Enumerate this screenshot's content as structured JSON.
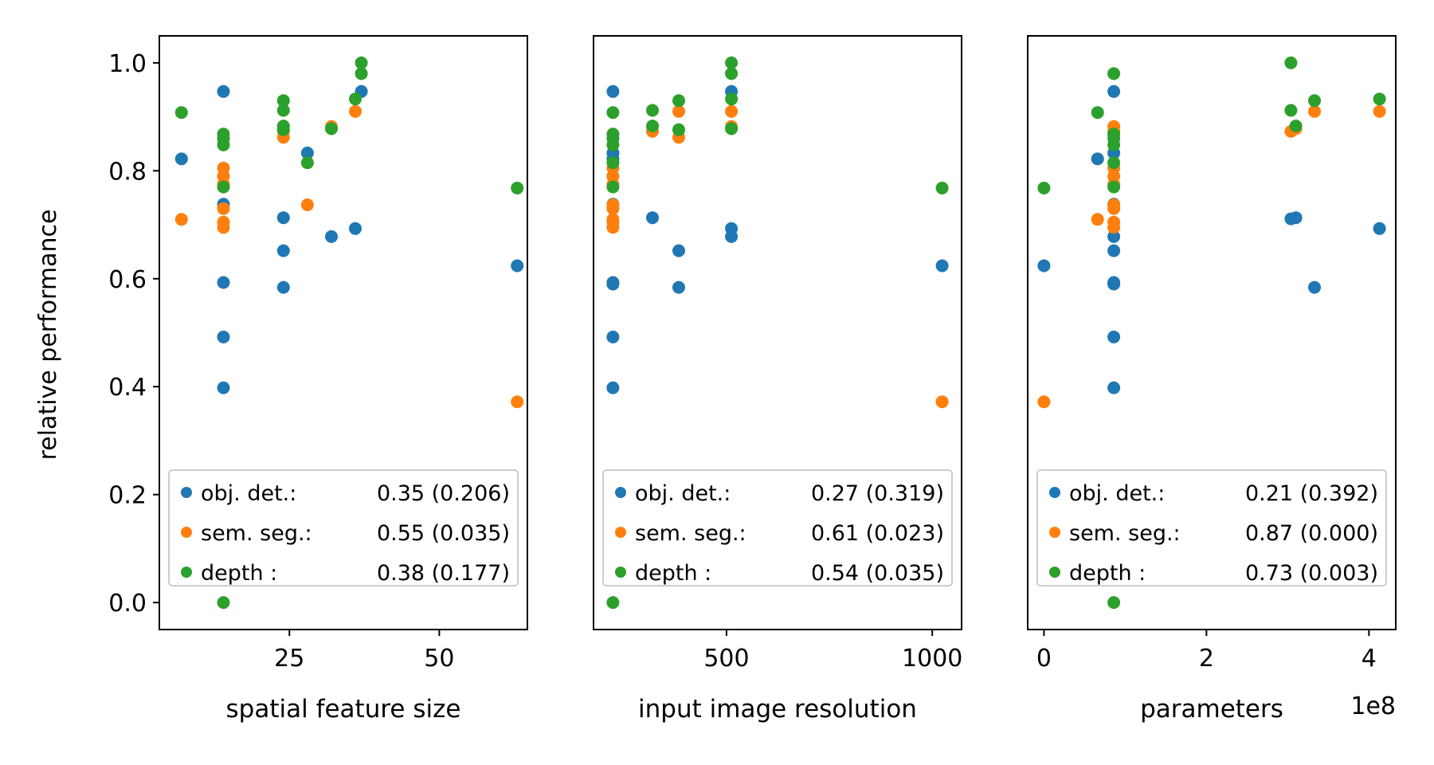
{
  "figure": {
    "ylabel": "relative performance"
  },
  "colors": {
    "obj_det": "#1f77b4",
    "sem_seg": "#ff7f0e",
    "depth": "#2ca02c"
  },
  "chart_data": [
    {
      "type": "scatter",
      "title": "",
      "xlabel": "spatial feature size",
      "ylabel": "relative performance",
      "xlim": [
        3.3,
        64.7
      ],
      "ylim": [
        -0.05,
        1.05
      ],
      "xticks": [
        25,
        50
      ],
      "xtick_labels": [
        "25",
        "50"
      ],
      "yticks": [
        0.0,
        0.2,
        0.4,
        0.6,
        0.8,
        1.0
      ],
      "ytick_labels": [
        "0.0",
        "0.2",
        "0.4",
        "0.6",
        "0.8",
        "1.0"
      ],
      "offset_text": "",
      "legend_placement": "lower-right",
      "series": [
        {
          "key": "obj_det",
          "name": "obj. det.:",
          "stat": "0.35 (0.206)",
          "points": [
            [
              7,
              0.822
            ],
            [
              14,
              0.947
            ],
            [
              14,
              0.738
            ],
            [
              14,
              0.593
            ],
            [
              14,
              0.492
            ],
            [
              14,
              0.398
            ],
            [
              24,
              0.713
            ],
            [
              24,
              0.652
            ],
            [
              24,
              0.584
            ],
            [
              28,
              0.833
            ],
            [
              32,
              0.678
            ],
            [
              36,
              0.693
            ],
            [
              37,
              0.947
            ],
            [
              63,
              0.624
            ]
          ]
        },
        {
          "key": "sem_seg",
          "name": "sem. seg.:",
          "stat": "0.55 (0.035)",
          "points": [
            [
              7,
              0.71
            ],
            [
              14,
              0.805
            ],
            [
              14,
              0.79
            ],
            [
              14,
              0.775
            ],
            [
              14,
              0.73
            ],
            [
              14,
              0.705
            ],
            [
              14,
              0.695
            ],
            [
              24,
              0.873
            ],
            [
              24,
              0.862
            ],
            [
              28,
              0.737
            ],
            [
              32,
              0.882
            ],
            [
              36,
              0.91
            ],
            [
              63,
              0.372
            ]
          ]
        },
        {
          "key": "depth",
          "name": "depth :",
          "stat": "0.38 (0.177)",
          "points": [
            [
              7,
              0.908
            ],
            [
              14,
              0.868
            ],
            [
              14,
              0.86
            ],
            [
              14,
              0.848
            ],
            [
              14,
              0.77
            ],
            [
              14,
              0.0
            ],
            [
              24,
              0.93
            ],
            [
              24,
              0.912
            ],
            [
              24,
              0.883
            ],
            [
              24,
              0.876
            ],
            [
              28,
              0.815
            ],
            [
              32,
              0.878
            ],
            [
              36,
              0.933
            ],
            [
              37,
              1.0
            ],
            [
              37,
              0.98
            ],
            [
              63,
              0.768
            ]
          ]
        }
      ]
    },
    {
      "type": "scatter",
      "title": "",
      "xlabel": "input image resolution",
      "ylabel": "",
      "xlim": [
        176.8,
        1071.2
      ],
      "ylim": [
        -0.05,
        1.05
      ],
      "xticks": [
        500,
        1000
      ],
      "xtick_labels": [
        "500",
        "1000"
      ],
      "yticks": [],
      "ytick_labels": [],
      "offset_text": "",
      "legend_placement": "lower-right",
      "series": [
        {
          "key": "obj_det",
          "name": "obj. det.:",
          "stat": "0.27 (0.319)",
          "points": [
            [
              224,
              0.947
            ],
            [
              224,
              0.833
            ],
            [
              224,
              0.822
            ],
            [
              224,
              0.738
            ],
            [
              224,
              0.593
            ],
            [
              224,
              0.59
            ],
            [
              224,
              0.492
            ],
            [
              224,
              0.398
            ],
            [
              320,
              0.713
            ],
            [
              384,
              0.652
            ],
            [
              384,
              0.584
            ],
            [
              512,
              0.947
            ],
            [
              512,
              0.693
            ],
            [
              512,
              0.678
            ],
            [
              1024,
              0.624
            ]
          ]
        },
        {
          "key": "sem_seg",
          "name": "sem. seg.:",
          "stat": "0.61 (0.023)",
          "points": [
            [
              224,
              0.805
            ],
            [
              224,
              0.79
            ],
            [
              224,
              0.775
            ],
            [
              224,
              0.737
            ],
            [
              224,
              0.73
            ],
            [
              224,
              0.71
            ],
            [
              224,
              0.705
            ],
            [
              224,
              0.695
            ],
            [
              320,
              0.873
            ],
            [
              384,
              0.91
            ],
            [
              384,
              0.862
            ],
            [
              512,
              0.91
            ],
            [
              512,
              0.882
            ],
            [
              1024,
              0.372
            ]
          ]
        },
        {
          "key": "depth",
          "name": "depth :",
          "stat": "0.54 (0.035)",
          "points": [
            [
              224,
              0.908
            ],
            [
              224,
              0.868
            ],
            [
              224,
              0.86
            ],
            [
              224,
              0.848
            ],
            [
              224,
              0.815
            ],
            [
              224,
              0.77
            ],
            [
              224,
              0.0
            ],
            [
              320,
              0.912
            ],
            [
              320,
              0.883
            ],
            [
              384,
              0.93
            ],
            [
              384,
              0.876
            ],
            [
              512,
              1.0
            ],
            [
              512,
              0.98
            ],
            [
              512,
              0.933
            ],
            [
              512,
              0.878
            ],
            [
              1024,
              0.768
            ]
          ]
        }
      ]
    },
    {
      "type": "scatter",
      "title": "",
      "xlabel": "parameters",
      "ylabel": "",
      "xlim": [
        -20000000,
        433000000
      ],
      "ylim": [
        -0.05,
        1.05
      ],
      "xticks": [
        0,
        200000000,
        400000000
      ],
      "xtick_labels": [
        "0",
        "2",
        "4"
      ],
      "yticks": [],
      "ytick_labels": [],
      "offset_text": "1e8",
      "legend_placement": "lower-right",
      "series": [
        {
          "key": "obj_det",
          "name": "obj. det.:",
          "stat": "0.21 (0.392)",
          "points": [
            [
              0,
              0.624
            ],
            [
              66000000,
              0.822
            ],
            [
              86000000,
              0.947
            ],
            [
              86000000,
              0.833
            ],
            [
              86000000,
              0.738
            ],
            [
              86000000,
              0.678
            ],
            [
              86000000,
              0.652
            ],
            [
              86000000,
              0.593
            ],
            [
              86000000,
              0.59
            ],
            [
              86000000,
              0.492
            ],
            [
              86000000,
              0.398
            ],
            [
              304000000,
              0.711
            ],
            [
              310000000,
              0.713
            ],
            [
              333000000,
              0.584
            ],
            [
              413000000,
              0.693
            ]
          ]
        },
        {
          "key": "sem_seg",
          "name": "sem. seg.:",
          "stat": "0.87 (0.000)",
          "points": [
            [
              0,
              0.372
            ],
            [
              66000000,
              0.71
            ],
            [
              86000000,
              0.882
            ],
            [
              86000000,
              0.873
            ],
            [
              86000000,
              0.805
            ],
            [
              86000000,
              0.79
            ],
            [
              86000000,
              0.775
            ],
            [
              86000000,
              0.737
            ],
            [
              86000000,
              0.73
            ],
            [
              86000000,
              0.705
            ],
            [
              86000000,
              0.695
            ],
            [
              304000000,
              0.873
            ],
            [
              310000000,
              0.878
            ],
            [
              333000000,
              0.91
            ],
            [
              413000000,
              0.91
            ]
          ]
        },
        {
          "key": "depth",
          "name": "depth :",
          "stat": "0.73 (0.003)",
          "points": [
            [
              0,
              0.768
            ],
            [
              66000000,
              0.908
            ],
            [
              86000000,
              0.98
            ],
            [
              86000000,
              0.868
            ],
            [
              86000000,
              0.86
            ],
            [
              86000000,
              0.848
            ],
            [
              86000000,
              0.815
            ],
            [
              86000000,
              0.77
            ],
            [
              86000000,
              0.0
            ],
            [
              304000000,
              1.0
            ],
            [
              304000000,
              0.912
            ],
            [
              310000000,
              0.883
            ],
            [
              333000000,
              0.93
            ],
            [
              413000000,
              0.933
            ]
          ]
        }
      ]
    }
  ]
}
